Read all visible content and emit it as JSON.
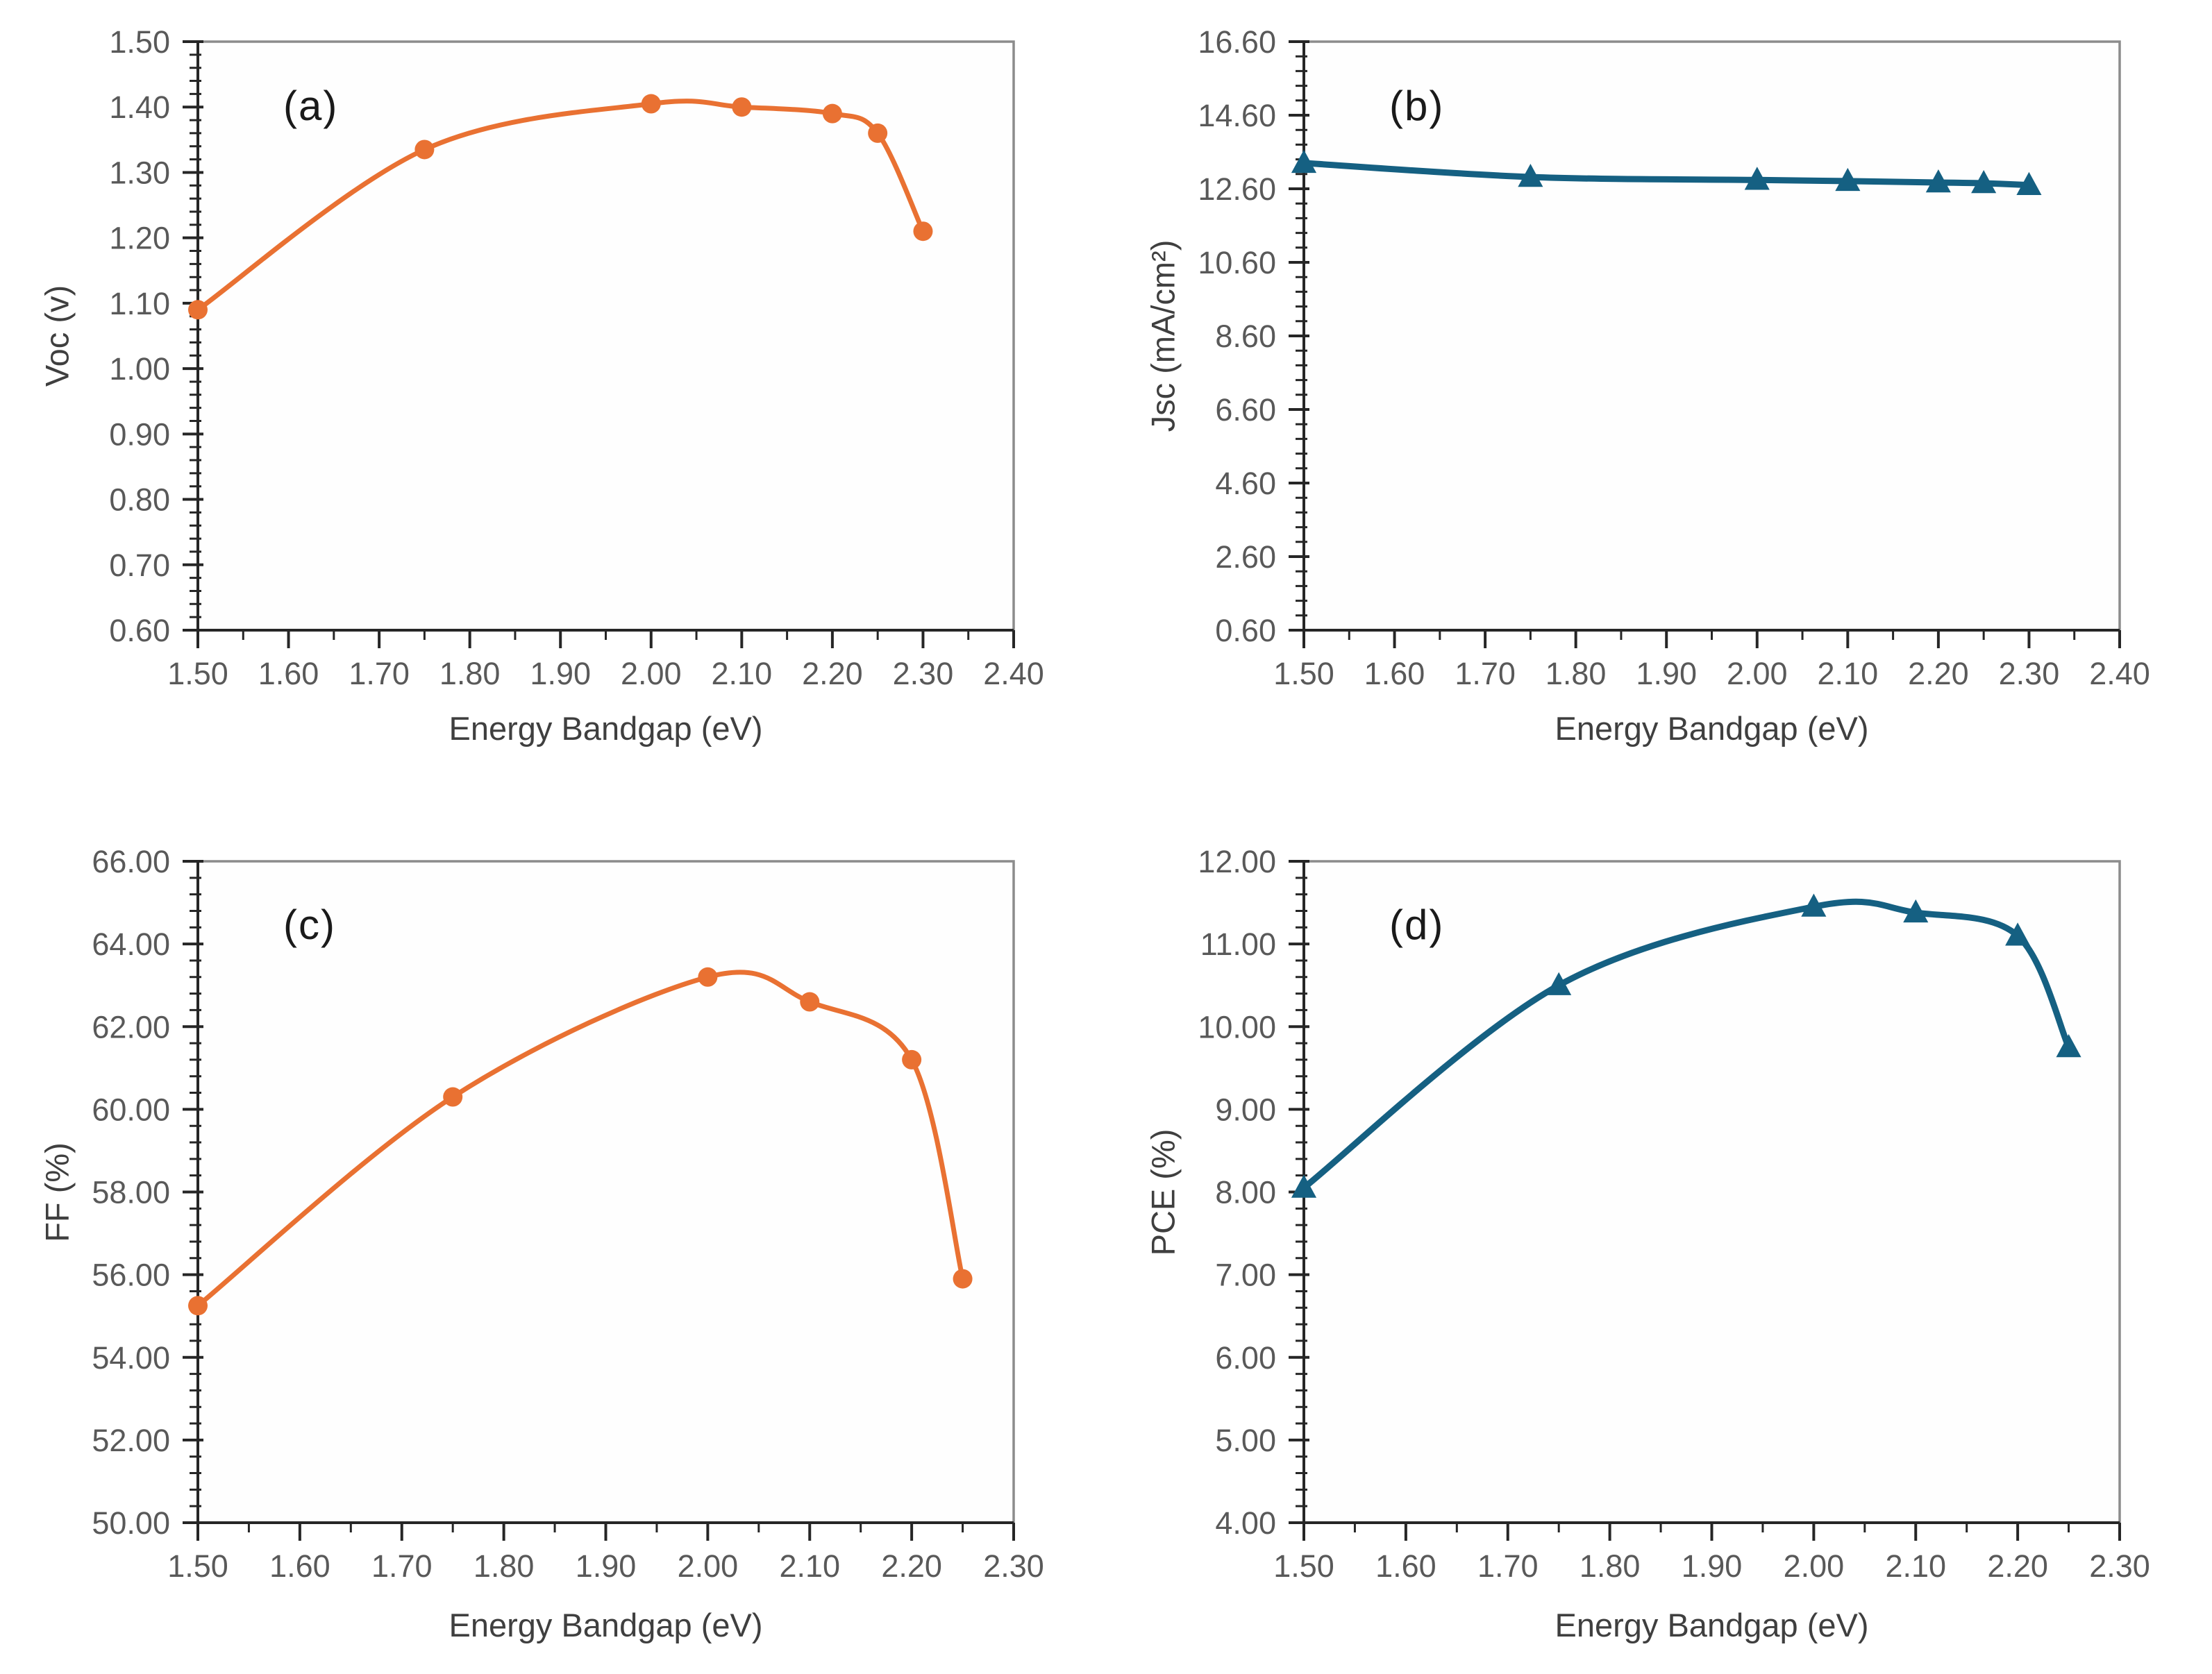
{
  "figure": {
    "background": "#ffffff",
    "accent_orange": "#E97132",
    "accent_teal": "#156082",
    "axis_color": "#262626",
    "border_color": "#8c8c8c",
    "tick_label_color": "#595959"
  },
  "chart_data": [
    {
      "panel_label": "(a)",
      "type": "line",
      "marker": "circle",
      "color": "#E97132",
      "xlabel": "Energy Bandgap (eV)",
      "ylabel": "Voc (v)",
      "x": [
        1.5,
        1.75,
        2.0,
        2.1,
        2.2,
        2.25,
        2.3
      ],
      "y": [
        1.09,
        1.335,
        1.405,
        1.4,
        1.39,
        1.36,
        1.21
      ],
      "xlim": [
        1.5,
        2.4
      ],
      "ylim": [
        0.6,
        1.5
      ],
      "xtick_step": 0.1,
      "ytick_step": 0.1,
      "x_minor_step": 0.05,
      "y_minor_step": 0.02,
      "tick_decimals": 2,
      "grid": false,
      "legend": null
    },
    {
      "panel_label": "(b)",
      "type": "line",
      "marker": "triangle",
      "color": "#156082",
      "xlabel": "Energy Bandgap (eV)",
      "ylabel": "Jsc (mA/cm²)",
      "x": [
        1.5,
        1.75,
        2.0,
        2.1,
        2.2,
        2.25,
        2.3
      ],
      "y": [
        13.3,
        12.92,
        12.84,
        12.81,
        12.77,
        12.75,
        12.7
      ],
      "xlim": [
        1.5,
        2.4
      ],
      "ylim": [
        0.6,
        16.6
      ],
      "xtick_step": 0.1,
      "ytick_step": 2.0,
      "x_minor_step": 0.05,
      "y_minor_step": 0.4,
      "tick_decimals": 2,
      "grid": false,
      "legend": null
    },
    {
      "panel_label": "(c)",
      "type": "line",
      "marker": "circle",
      "color": "#E97132",
      "xlabel": "Energy Bandgap (eV)",
      "ylabel": "FF (%)",
      "x": [
        1.5,
        1.75,
        2.0,
        2.1,
        2.2,
        2.25
      ],
      "y": [
        55.25,
        60.3,
        63.2,
        62.6,
        61.2,
        55.9
      ],
      "xlim": [
        1.5,
        2.3
      ],
      "ylim": [
        50.0,
        66.0
      ],
      "xtick_step": 0.1,
      "ytick_step": 2.0,
      "x_minor_step": 0.05,
      "y_minor_step": 0.4,
      "tick_decimals": 2,
      "grid": false,
      "legend": null
    },
    {
      "panel_label": "(d)",
      "type": "line",
      "marker": "triangle",
      "color": "#156082",
      "xlabel": "Energy Bandgap (eV)",
      "ylabel": "PCE (%)",
      "x": [
        1.5,
        1.75,
        2.0,
        2.1,
        2.2,
        2.25
      ],
      "y": [
        8.05,
        10.5,
        11.45,
        11.38,
        11.1,
        9.75
      ],
      "xlim": [
        1.5,
        2.3
      ],
      "ylim": [
        4.0,
        12.0
      ],
      "xtick_step": 0.1,
      "ytick_step": 1.0,
      "x_minor_step": 0.05,
      "y_minor_step": 0.2,
      "tick_decimals": 2,
      "grid": false,
      "legend": null
    }
  ]
}
